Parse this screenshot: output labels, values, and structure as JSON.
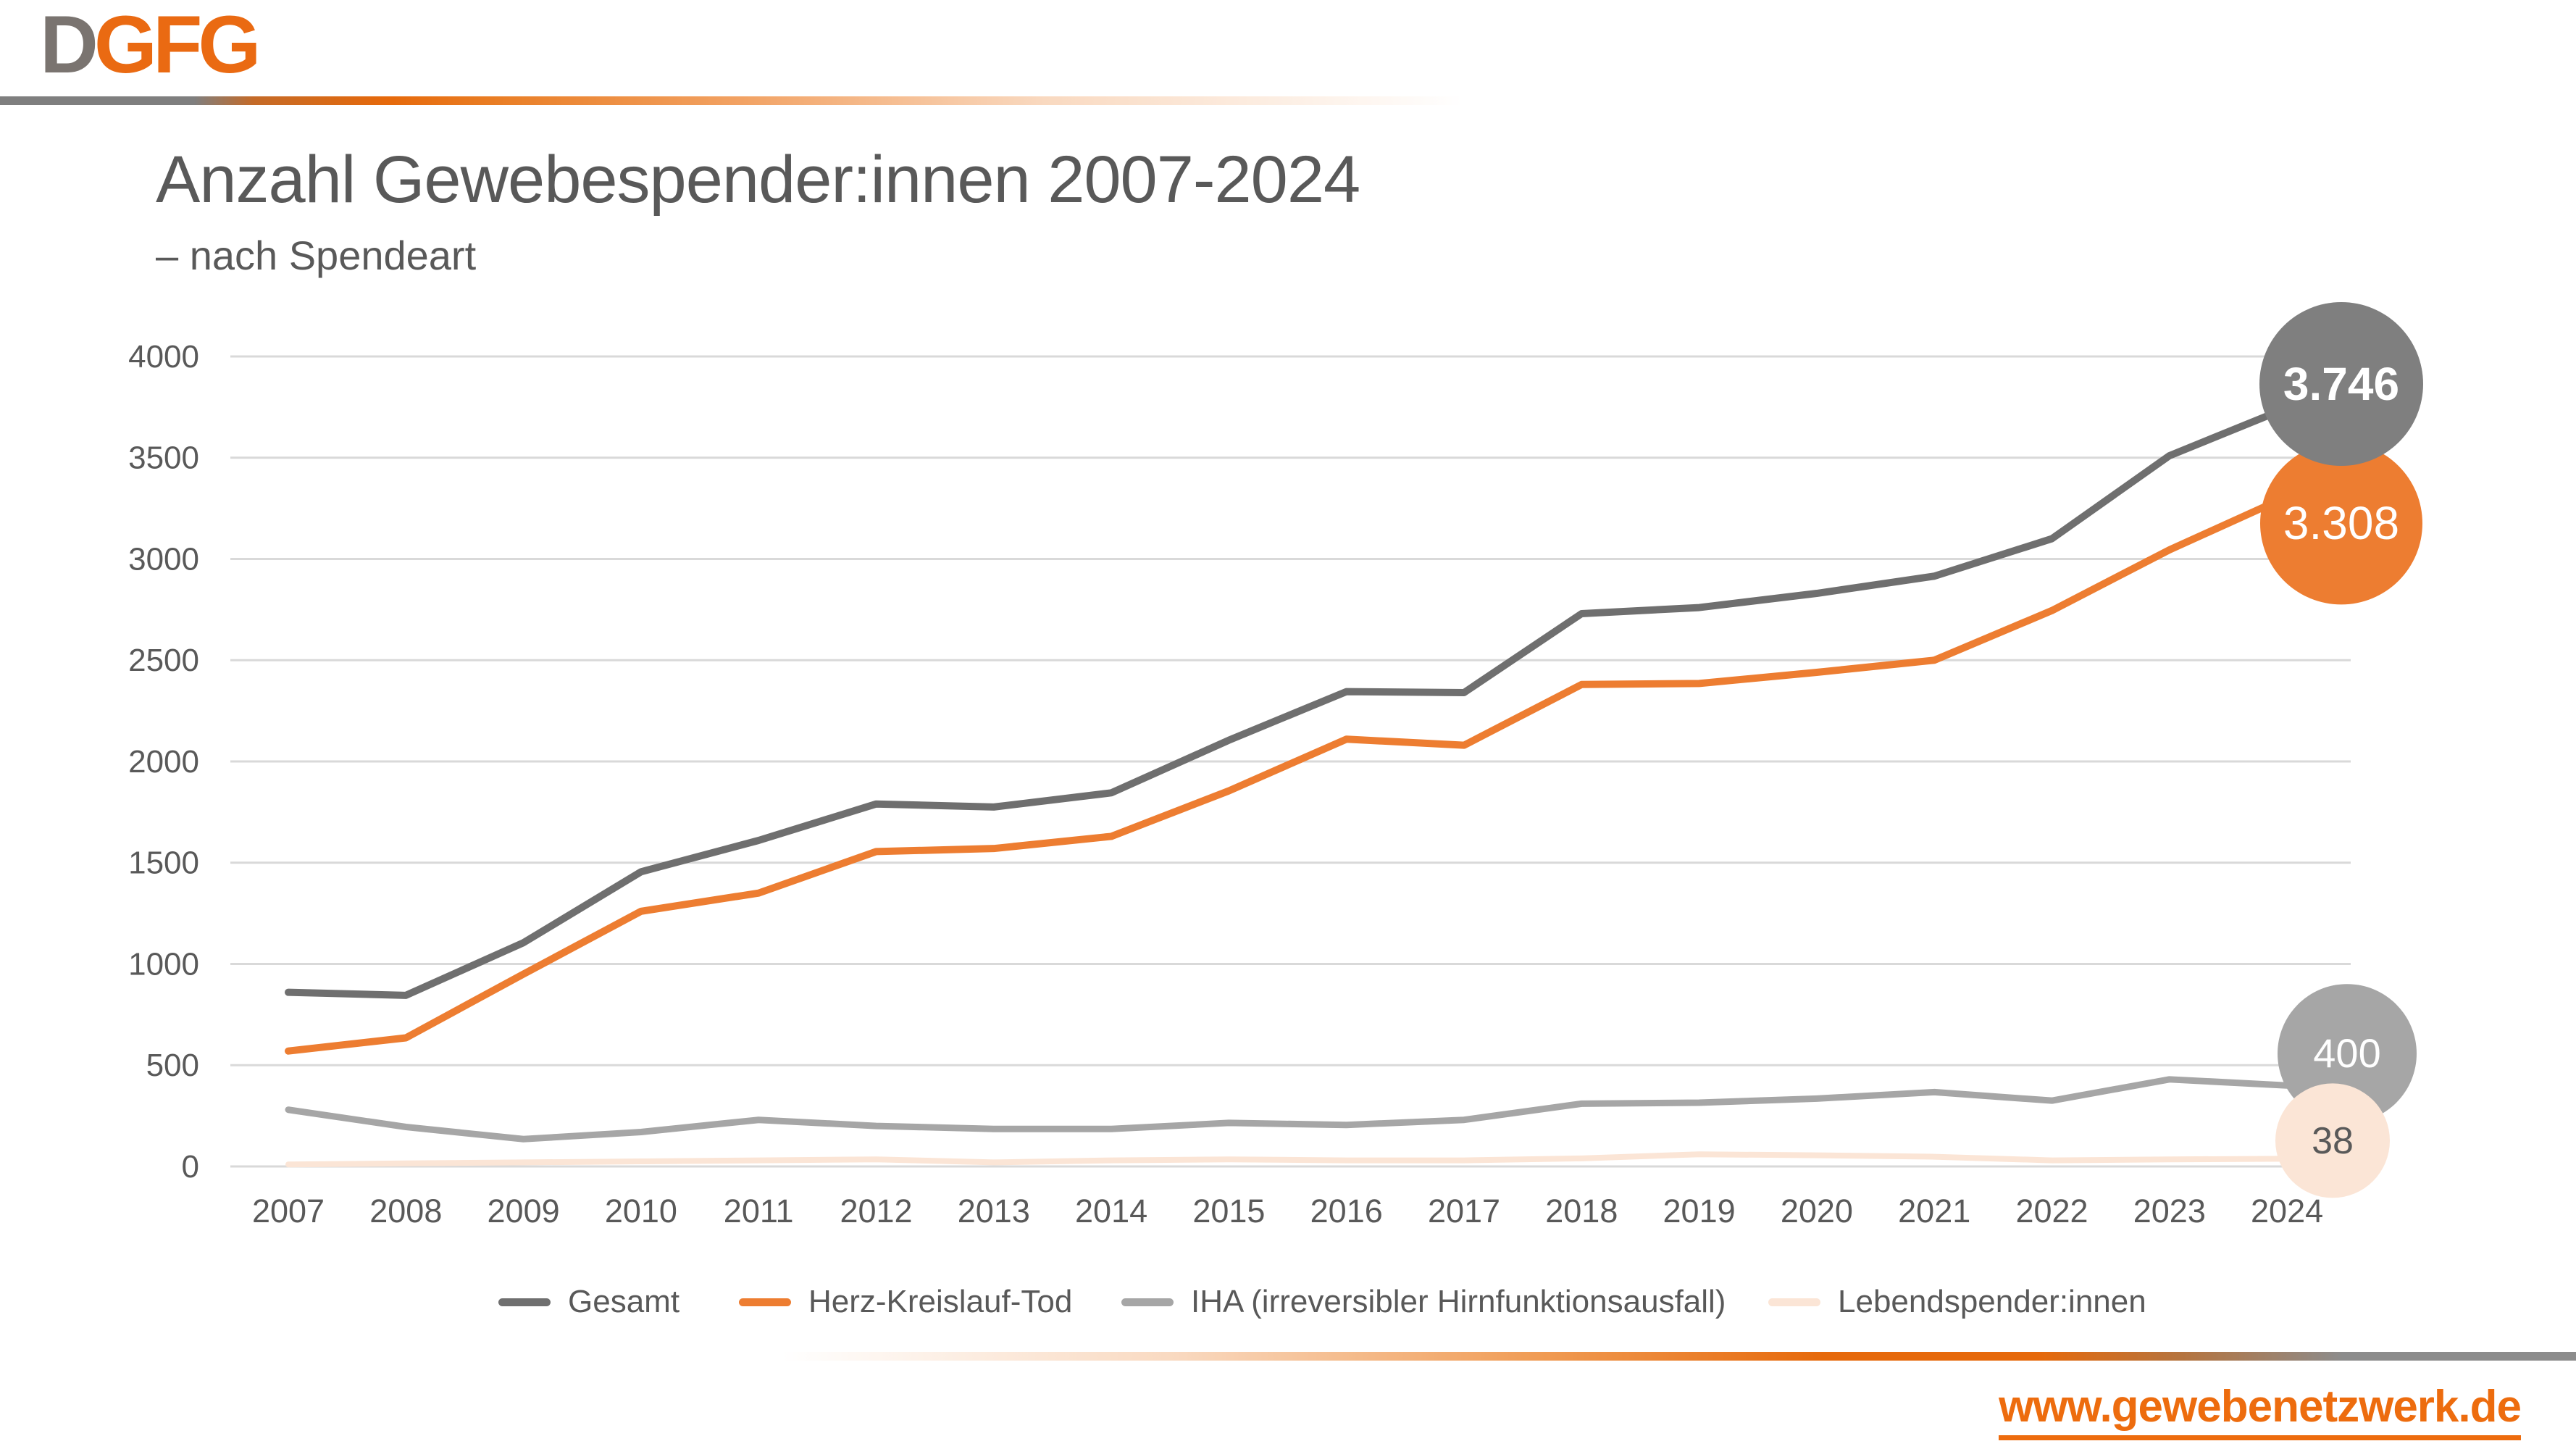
{
  "logo": {
    "part1": "D",
    "part2": "GFG"
  },
  "header": {
    "title": "Anzahl Gewebespender:innen 2007-2024",
    "subtitle": "– nach Spendeart"
  },
  "footer": {
    "link": "www.gewebenetzwerk.de"
  },
  "colors": {
    "text": "#595959",
    "gridline": "#D9D9D9",
    "brand_orange": "#EA6A12",
    "brand_gray": "#7A7470"
  },
  "chart_data": {
    "type": "line",
    "title": "Anzahl Gewebespender:innen 2007-2024 – nach Spendeart",
    "xlabel": "",
    "ylabel": "",
    "ylim": [
      0,
      4000
    ],
    "ytick_step": 500,
    "yticks": [
      0,
      500,
      1000,
      1500,
      2000,
      2500,
      3000,
      3500,
      4000
    ],
    "grid": true,
    "legend_position": "bottom",
    "x": [
      2007,
      2008,
      2009,
      2010,
      2011,
      2012,
      2013,
      2014,
      2015,
      2016,
      2017,
      2018,
      2019,
      2020,
      2021,
      2022,
      2023,
      2024
    ],
    "series": [
      {
        "id": "gesamt",
        "name": "Gesamt",
        "color": "#6F6F6F",
        "circle_color": "#7F7F7F",
        "label_color": "#FFFFFF",
        "end_label": "3.746",
        "values": [
          860,
          845,
          1105,
          1455,
          1610,
          1790,
          1775,
          1845,
          2105,
          2345,
          2340,
          2730,
          2760,
          2830,
          2915,
          3100,
          3510,
          3746
        ]
      },
      {
        "id": "herz-kreislauf-tod",
        "name": "Herz-Kreislauf-Tod",
        "color": "#ED7D31",
        "circle_color": "#ED7D31",
        "label_color": "#FFFFFF",
        "end_label": "3.308",
        "values": [
          570,
          635,
          950,
          1260,
          1350,
          1555,
          1570,
          1630,
          1855,
          2110,
          2080,
          2380,
          2385,
          2440,
          2500,
          2745,
          3045,
          3308
        ]
      },
      {
        "id": "iha",
        "name": "IHA (irreversibler Hirnfunktionsausfall)",
        "color": "#A6A6A6",
        "circle_color": "#A6A6A6",
        "label_color": "#FFFFFF",
        "end_label": "400",
        "values": [
          280,
          195,
          135,
          170,
          230,
          200,
          185,
          185,
          215,
          205,
          230,
          310,
          315,
          335,
          367,
          325,
          430,
          400
        ]
      },
      {
        "id": "lebendspender",
        "name": "Lebendspender:innen",
        "color": "#FBE5D6",
        "circle_color": "#FBE5D6",
        "label_color": "#595959",
        "end_label": "38",
        "values": [
          10,
          15,
          20,
          25,
          30,
          35,
          20,
          30,
          35,
          30,
          30,
          40,
          60,
          55,
          48,
          30,
          35,
          38
        ]
      }
    ]
  }
}
